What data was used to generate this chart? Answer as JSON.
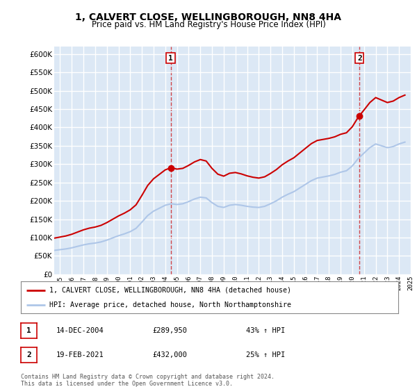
{
  "title": "1, CALVERT CLOSE, WELLINGBOROUGH, NN8 4HA",
  "subtitle": "Price paid vs. HM Land Registry's House Price Index (HPI)",
  "ylim": [
    0,
    620000
  ],
  "yticks": [
    0,
    50000,
    100000,
    150000,
    200000,
    250000,
    300000,
    350000,
    400000,
    450000,
    500000,
    550000,
    600000
  ],
  "sale1_date": 2004.96,
  "sale1_price": 289950,
  "sale2_date": 2021.12,
  "sale2_price": 432000,
  "sale1_label": "1",
  "sale2_label": "2",
  "legend_line1": "1, CALVERT CLOSE, WELLINGBOROUGH, NN8 4HA (detached house)",
  "legend_line2": "HPI: Average price, detached house, North Northamptonshire",
  "table_row1": [
    "1",
    "14-DEC-2004",
    "£289,950",
    "43% ↑ HPI"
  ],
  "table_row2": [
    "2",
    "19-FEB-2021",
    "£432,000",
    "25% ↑ HPI"
  ],
  "footer": "Contains HM Land Registry data © Crown copyright and database right 2024.\nThis data is licensed under the Open Government Licence v3.0.",
  "hpi_color": "#aec6e8",
  "price_color": "#cc0000",
  "vline_color": "#cc0000",
  "bg_color": "#ffffff",
  "plot_bg_color": "#dce8f5",
  "grid_color": "#ffffff"
}
